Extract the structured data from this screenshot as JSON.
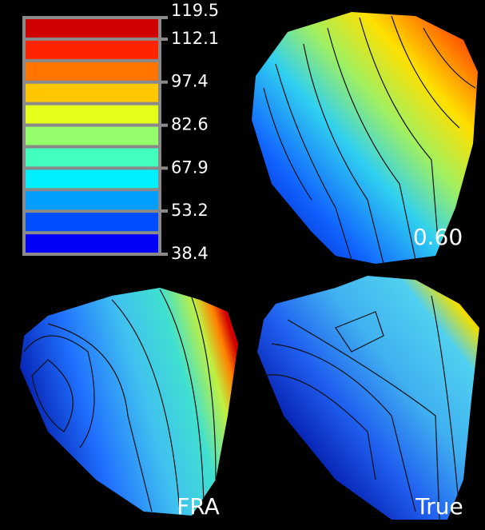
{
  "colorbar": {
    "ticks": [
      119.5,
      112.1,
      97.4,
      82.6,
      67.9,
      53.2,
      38.4
    ]
  },
  "panels": [
    {
      "label": "0.60"
    },
    {
      "label": "FRA"
    },
    {
      "label": "True"
    }
  ]
}
